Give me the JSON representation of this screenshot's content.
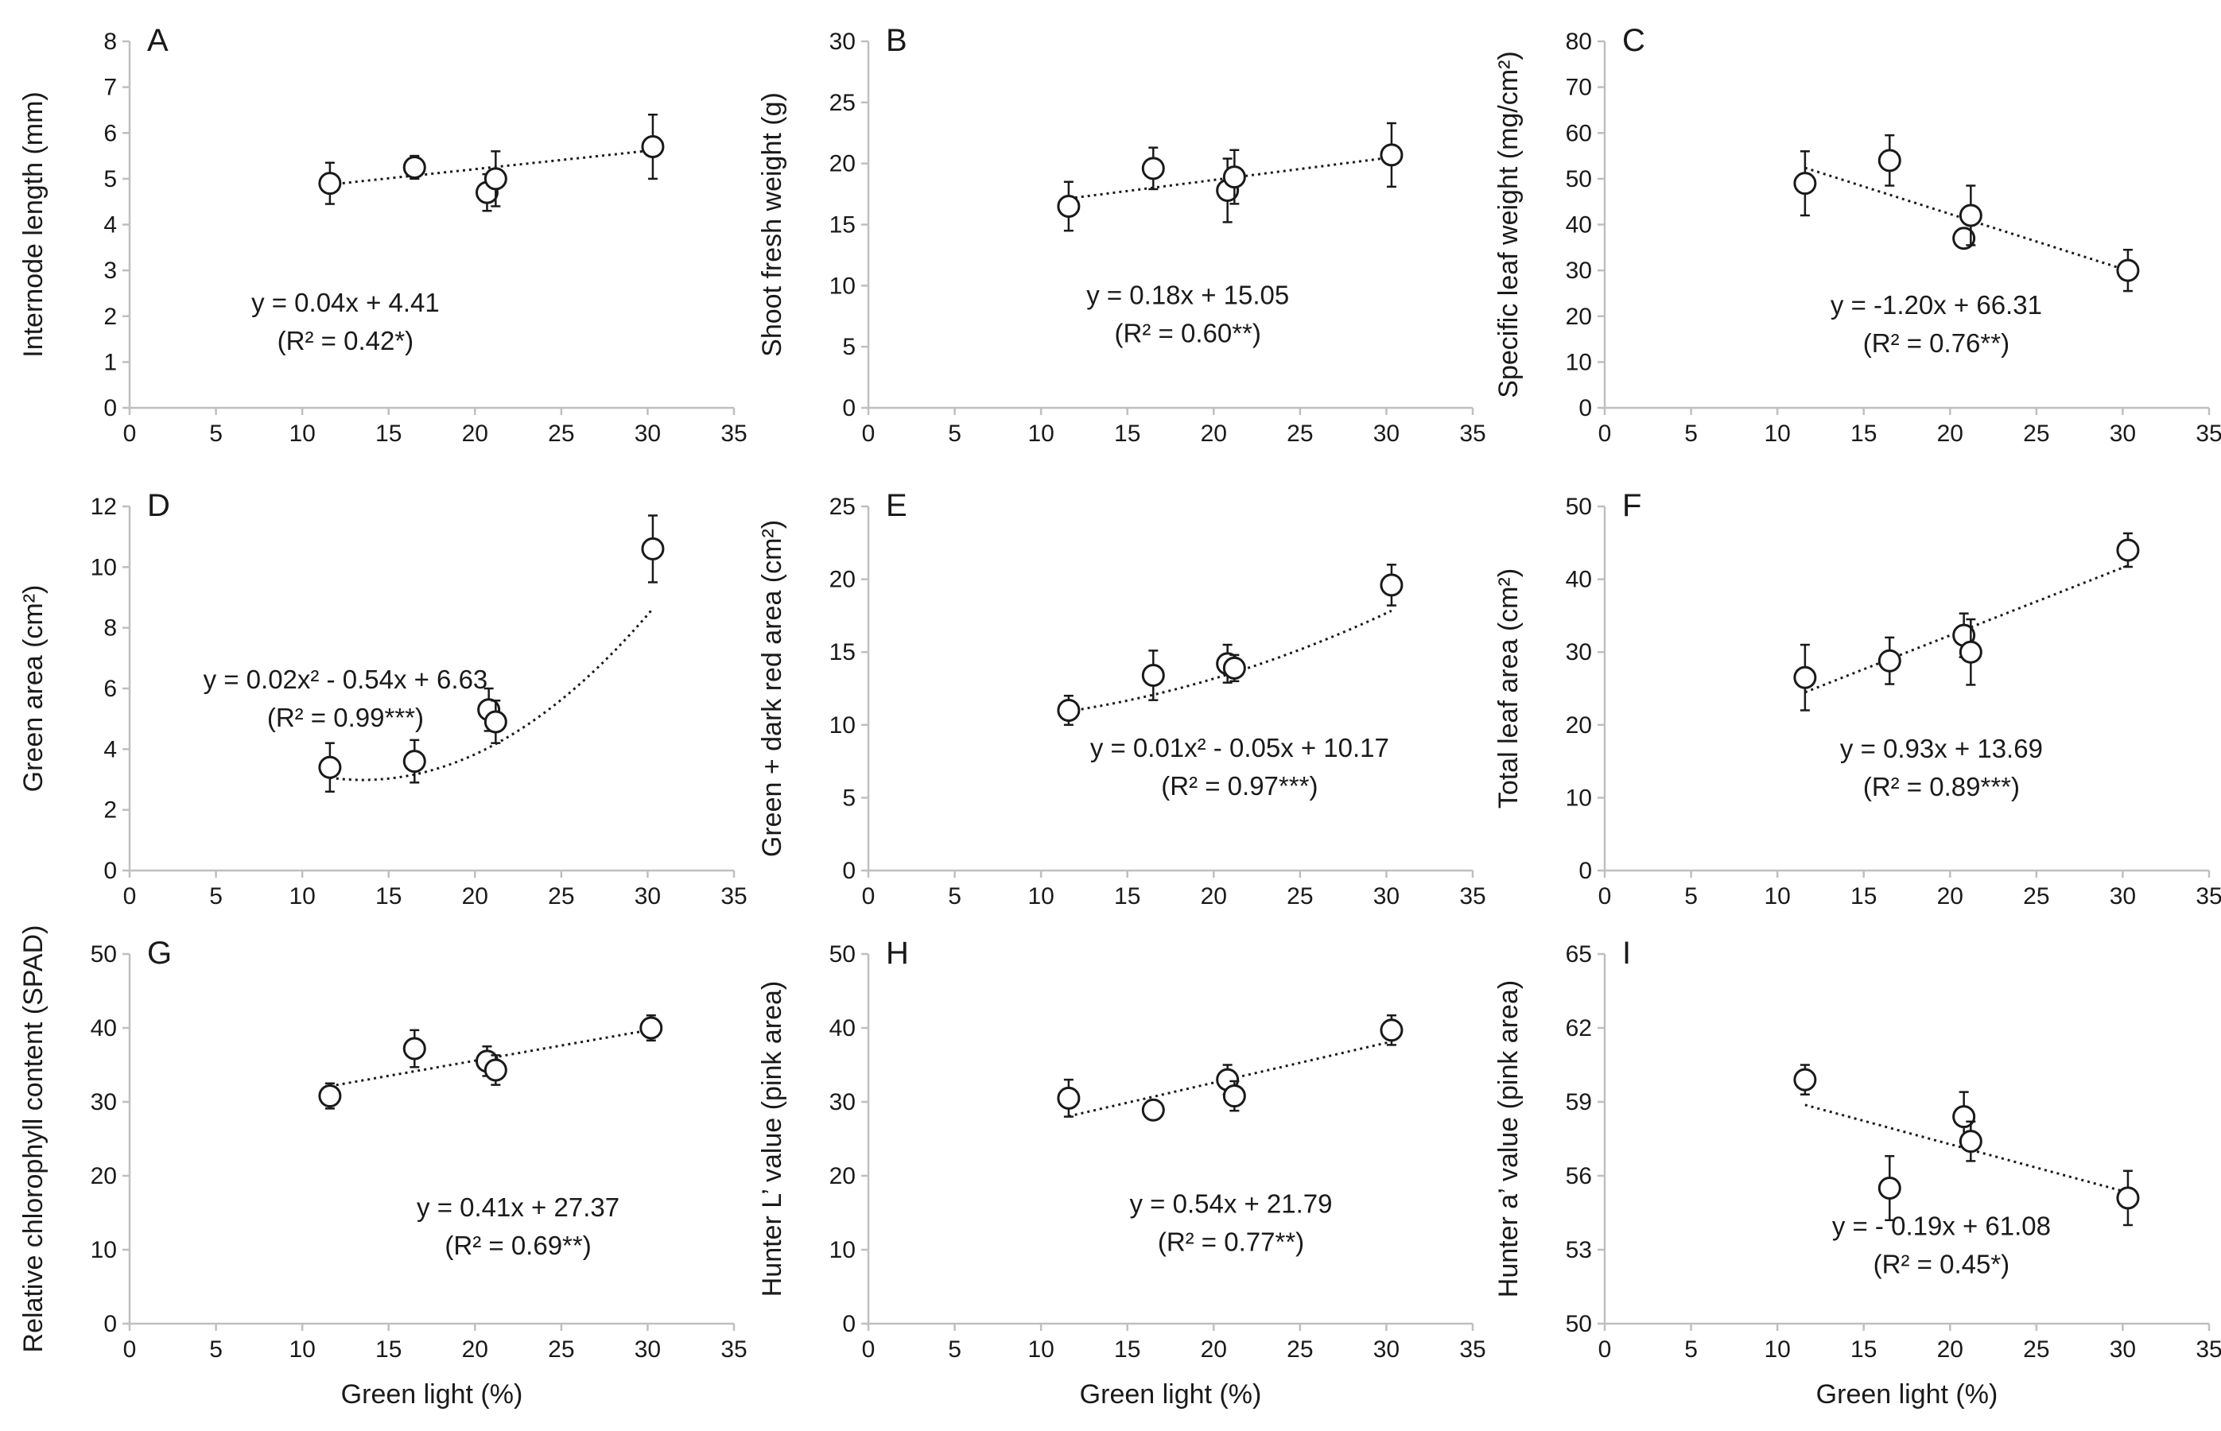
{
  "colors": {
    "axis": "#bfbfbf",
    "marker": "#1a1a1a",
    "trend": "#1a1a1a",
    "text": "#1a1a1a"
  },
  "shared_xlabel": "Green light (%)",
  "chart_data": [
    {
      "type": "scatter",
      "letter": "A",
      "xlabel": "Green light (%)",
      "ylabel": "Internode length (mm)",
      "xlim": [
        0,
        35
      ],
      "xticks": [
        0,
        5,
        10,
        15,
        20,
        25,
        30,
        35
      ],
      "ylim": [
        0,
        8
      ],
      "yticks": [
        0,
        1,
        2,
        3,
        4,
        5,
        6,
        7,
        8
      ],
      "points": [
        {
          "x": 11.6,
          "y": 4.9,
          "err": 0.45
        },
        {
          "x": 16.5,
          "y": 5.25,
          "err": 0.25
        },
        {
          "x": 20.7,
          "y": 4.7,
          "err": 0.4
        },
        {
          "x": 21.2,
          "y": 5.0,
          "err": 0.6
        },
        {
          "x": 30.3,
          "y": 5.7,
          "err": 0.7
        }
      ],
      "fit": {
        "kind": "linear",
        "coef": [
          0.04,
          4.41
        ],
        "range": [
          11.6,
          30.3
        ]
      },
      "equation": "y = 0.04x + 4.41",
      "r2": "(R² = 0.42*)",
      "eq_pos": [
        12.5,
        2.1
      ]
    },
    {
      "type": "scatter",
      "letter": "B",
      "xlabel": "Green light (%)",
      "ylabel": "Shoot fresh weight (g)",
      "xlim": [
        0,
        35
      ],
      "xticks": [
        0,
        5,
        10,
        15,
        20,
        25,
        30,
        35
      ],
      "ylim": [
        0,
        30
      ],
      "yticks": [
        0,
        5,
        10,
        15,
        20,
        25,
        30
      ],
      "points": [
        {
          "x": 11.6,
          "y": 16.5,
          "err": 2.0
        },
        {
          "x": 16.5,
          "y": 19.6,
          "err": 1.7
        },
        {
          "x": 20.8,
          "y": 17.8,
          "err": 2.6
        },
        {
          "x": 21.2,
          "y": 18.9,
          "err": 2.2
        },
        {
          "x": 30.3,
          "y": 20.7,
          "err": 2.6
        }
      ],
      "fit": {
        "kind": "linear",
        "coef": [
          0.18,
          15.05
        ],
        "range": [
          11.6,
          30.3
        ]
      },
      "equation": "y = 0.18x + 15.05",
      "r2": "(R² = 0.60**)",
      "eq_pos": [
        18.5,
        8.5
      ]
    },
    {
      "type": "scatter",
      "letter": "C",
      "xlabel": "Green light (%)",
      "ylabel": "Specific leaf weight (mg/cm²)",
      "xlim": [
        0,
        35
      ],
      "xticks": [
        0,
        5,
        10,
        15,
        20,
        25,
        30,
        35
      ],
      "ylim": [
        0,
        80
      ],
      "yticks": [
        0,
        10,
        20,
        30,
        40,
        50,
        60,
        70,
        80
      ],
      "points": [
        {
          "x": 11.6,
          "y": 49,
          "err": 7
        },
        {
          "x": 16.5,
          "y": 54,
          "err": 5.5
        },
        {
          "x": 20.8,
          "y": 37,
          "err": 1.5
        },
        {
          "x": 21.2,
          "y": 42,
          "err": 6.5
        },
        {
          "x": 30.3,
          "y": 30,
          "err": 4.5
        }
      ],
      "fit": {
        "kind": "linear",
        "coef": [
          -1.2,
          66.31
        ],
        "range": [
          11.6,
          30.3
        ]
      },
      "equation": "y = -1.20x + 66.31",
      "r2": "(R² = 0.76**)",
      "eq_pos": [
        19.2,
        20.5
      ]
    },
    {
      "type": "scatter",
      "letter": "D",
      "xlabel": "Green light (%)",
      "ylabel": "Green area (cm²)",
      "xlim": [
        0,
        35
      ],
      "xticks": [
        0,
        5,
        10,
        15,
        20,
        25,
        30,
        35
      ],
      "ylim": [
        0,
        12
      ],
      "yticks": [
        0,
        2,
        4,
        6,
        8,
        10,
        12
      ],
      "points": [
        {
          "x": 11.6,
          "y": 3.4,
          "err": 0.8
        },
        {
          "x": 16.5,
          "y": 3.6,
          "err": 0.7
        },
        {
          "x": 20.8,
          "y": 5.3,
          "err": 0.7
        },
        {
          "x": 21.2,
          "y": 4.9,
          "err": 0.7
        },
        {
          "x": 30.3,
          "y": 10.6,
          "err": 1.1
        }
      ],
      "fit": {
        "kind": "quadratic",
        "coef": [
          0.02,
          -0.54,
          6.63
        ],
        "range": [
          11.6,
          30.3
        ]
      },
      "equation": "y = 0.02x² - 0.54x + 6.63",
      "r2": "(R² = 0.99***)",
      "eq_pos": [
        12.5,
        6.0
      ]
    },
    {
      "type": "scatter",
      "letter": "E",
      "xlabel": "Green light (%)",
      "ylabel": "Green + dark red area (cm²)",
      "xlim": [
        0,
        35
      ],
      "xticks": [
        0,
        5,
        10,
        15,
        20,
        25,
        30,
        35
      ],
      "ylim": [
        0,
        25
      ],
      "yticks": [
        0,
        5,
        10,
        15,
        20,
        25
      ],
      "points": [
        {
          "x": 11.6,
          "y": 11.0,
          "err": 1.0
        },
        {
          "x": 16.5,
          "y": 13.4,
          "err": 1.7
        },
        {
          "x": 20.8,
          "y": 14.2,
          "err": 1.3
        },
        {
          "x": 21.2,
          "y": 13.9,
          "err": 0.9
        },
        {
          "x": 30.3,
          "y": 19.6,
          "err": 1.4
        }
      ],
      "fit": {
        "kind": "quadratic",
        "coef": [
          0.01,
          -0.05,
          10.17
        ],
        "range": [
          11.6,
          30.3
        ]
      },
      "equation": "y = 0.01x² - 0.05x + 10.17",
      "r2": "(R² = 0.97***)",
      "eq_pos": [
        21.5,
        7.8
      ]
    },
    {
      "type": "scatter",
      "letter": "F",
      "xlabel": "Green light (%)",
      "ylabel": "Total leaf area (cm²)",
      "xlim": [
        0,
        35
      ],
      "xticks": [
        0,
        5,
        10,
        15,
        20,
        25,
        30,
        35
      ],
      "ylim": [
        0,
        50
      ],
      "yticks": [
        0,
        10,
        20,
        30,
        40,
        50
      ],
      "points": [
        {
          "x": 11.6,
          "y": 26.5,
          "err": 4.5
        },
        {
          "x": 16.5,
          "y": 28.8,
          "err": 3.2
        },
        {
          "x": 20.8,
          "y": 32.3,
          "err": 3.0
        },
        {
          "x": 21.2,
          "y": 30.0,
          "err": 4.5
        },
        {
          "x": 30.3,
          "y": 44.0,
          "err": 2.3
        }
      ],
      "fit": {
        "kind": "linear",
        "coef": [
          0.93,
          13.69
        ],
        "range": [
          11.6,
          30.3
        ]
      },
      "equation": "y = 0.93x + 13.69",
      "r2": "(R² = 0.89***)",
      "eq_pos": [
        19.5,
        15.5
      ]
    },
    {
      "type": "scatter",
      "letter": "G",
      "xlabel": "Green light (%)",
      "ylabel": "Relative chlorophyll content (SPAD)",
      "xlim": [
        0,
        35
      ],
      "xticks": [
        0,
        5,
        10,
        15,
        20,
        25,
        30,
        35
      ],
      "ylim": [
        0,
        50
      ],
      "yticks": [
        0,
        10,
        20,
        30,
        40,
        50
      ],
      "points": [
        {
          "x": 11.6,
          "y": 30.8,
          "err": 1.7
        },
        {
          "x": 16.5,
          "y": 37.2,
          "err": 2.5
        },
        {
          "x": 20.7,
          "y": 35.5,
          "err": 2.0
        },
        {
          "x": 21.2,
          "y": 34.3,
          "err": 2.0
        },
        {
          "x": 30.2,
          "y": 40.0,
          "err": 1.7
        }
      ],
      "fit": {
        "kind": "linear",
        "coef": [
          0.41,
          27.37
        ],
        "range": [
          11.6,
          30.2
        ]
      },
      "equation": "y = 0.41x + 27.37",
      "r2": "(R² = 0.69**)",
      "eq_pos": [
        22.5,
        14.5
      ]
    },
    {
      "type": "scatter",
      "letter": "H",
      "xlabel": "Green light (%)",
      "ylabel": "Hunter L’ value (pink area)",
      "xlim": [
        0,
        35
      ],
      "xticks": [
        0,
        5,
        10,
        15,
        20,
        25,
        30,
        35
      ],
      "ylim": [
        0,
        50
      ],
      "yticks": [
        0,
        10,
        20,
        30,
        40,
        50
      ],
      "points": [
        {
          "x": 11.6,
          "y": 30.5,
          "err": 2.5
        },
        {
          "x": 16.5,
          "y": 28.9,
          "err": 1.3
        },
        {
          "x": 20.8,
          "y": 33.0,
          "err": 2.0
        },
        {
          "x": 21.2,
          "y": 30.8,
          "err": 2.0
        },
        {
          "x": 30.3,
          "y": 39.7,
          "err": 2.0
        }
      ],
      "fit": {
        "kind": "linear",
        "coef": [
          0.54,
          21.79
        ],
        "range": [
          11.6,
          30.3
        ]
      },
      "equation": "y = 0.54x + 21.79",
      "r2": "(R² = 0.77**)",
      "eq_pos": [
        21.0,
        15.0
      ]
    },
    {
      "type": "scatter",
      "letter": "I",
      "xlabel": "Green light (%)",
      "ylabel": "Hunter a’ value (pink area)",
      "xlim": [
        0,
        35
      ],
      "xticks": [
        0,
        5,
        10,
        15,
        20,
        25,
        30,
        35
      ],
      "ylim": [
        50,
        65
      ],
      "yticks": [
        50,
        53,
        56,
        59,
        62,
        65
      ],
      "points": [
        {
          "x": 11.6,
          "y": 59.9,
          "err": 0.6
        },
        {
          "x": 16.5,
          "y": 55.5,
          "err": 1.3
        },
        {
          "x": 20.8,
          "y": 58.4,
          "err": 1.0
        },
        {
          "x": 21.2,
          "y": 57.4,
          "err": 0.8
        },
        {
          "x": 30.3,
          "y": 55.1,
          "err": 1.1
        }
      ],
      "fit": {
        "kind": "linear",
        "coef": [
          -0.19,
          61.08
        ],
        "range": [
          11.6,
          30.3
        ]
      },
      "equation": "y = - 0.19x + 61.08",
      "r2": "(R² = 0.45*)",
      "eq_pos": [
        19.5,
        53.6
      ]
    }
  ]
}
